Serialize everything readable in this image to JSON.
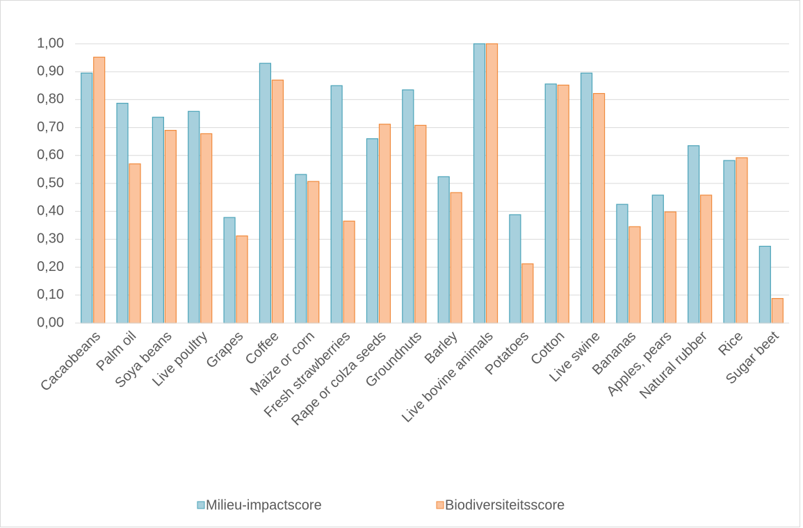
{
  "chart_data": {
    "type": "bar",
    "categories": [
      "Cacaobeans",
      "Palm oil",
      "Soya beans",
      "Live poultry",
      "Grapes",
      "Coffee",
      "Maize or corn",
      "Fresh strawberries",
      "Rape or colza seeds",
      "Groundnuts",
      "Barley",
      "Live bovine animals",
      "Potatoes",
      "Cotton",
      "Live swine",
      "Bananas",
      "Apples, pears",
      "Natural rubber",
      "Rice",
      "Sugar beet"
    ],
    "series": [
      {
        "name": "Milieu-impactscore",
        "color": "#a7d0dd",
        "edge": "#4aa3b8",
        "values": [
          0.895,
          0.787,
          0.737,
          0.758,
          0.378,
          0.93,
          0.532,
          0.85,
          0.66,
          0.835,
          0.524,
          1.0,
          0.388,
          0.856,
          0.895,
          0.425,
          0.458,
          0.635,
          0.582,
          0.275
        ]
      },
      {
        "name": "Biodiversiteitsscore",
        "color": "#fbc39d",
        "edge": "#f08a3c",
        "values": [
          0.952,
          0.57,
          0.69,
          0.678,
          0.312,
          0.87,
          0.507,
          0.365,
          0.712,
          0.708,
          0.467,
          1.0,
          0.212,
          0.852,
          0.822,
          0.345,
          0.398,
          0.458,
          0.592,
          0.088
        ]
      }
    ],
    "ylim": [
      0,
      1
    ],
    "yticks": [
      {
        "value": 0,
        "label": "0,00"
      },
      {
        "value": 0.1,
        "label": "0,10"
      },
      {
        "value": 0.2,
        "label": "0,20"
      },
      {
        "value": 0.3,
        "label": "0,30"
      },
      {
        "value": 0.4,
        "label": "0,40"
      },
      {
        "value": 0.5,
        "label": "0,50"
      },
      {
        "value": 0.6,
        "label": "0,60"
      },
      {
        "value": 0.7,
        "label": "0,70"
      },
      {
        "value": 0.8,
        "label": "0,80"
      },
      {
        "value": 0.9,
        "label": "0,90"
      },
      {
        "value": 1,
        "label": "1,00"
      }
    ],
    "grid": true,
    "legend": "bottom"
  }
}
